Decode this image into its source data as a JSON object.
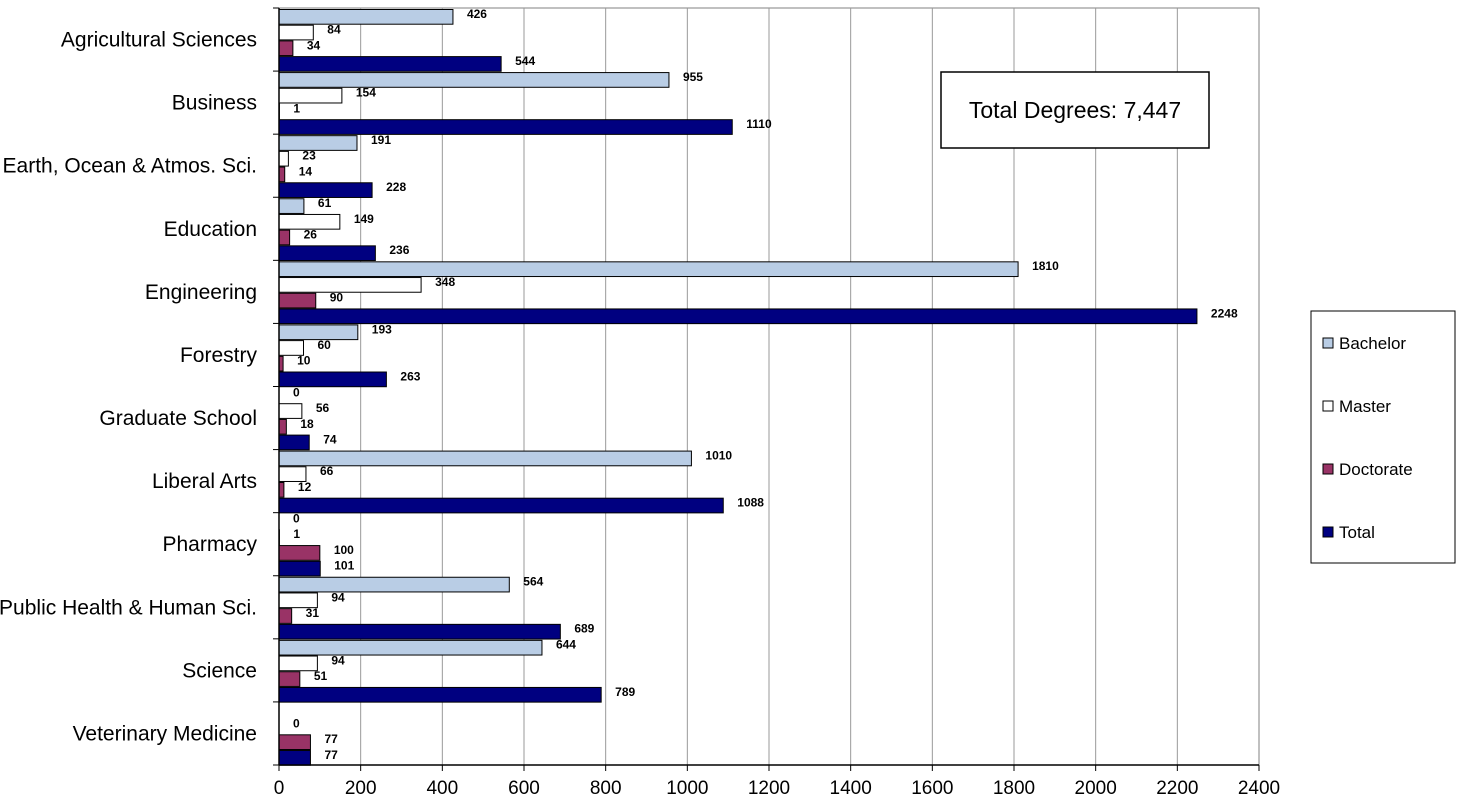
{
  "chart_data": {
    "type": "bar",
    "orientation": "horizontal",
    "categories": [
      "Agricultural Sciences",
      "Business",
      "Earth, Ocean & Atmos. Sci.",
      "Education",
      "Engineering",
      "Forestry",
      "Graduate School",
      "Liberal Arts",
      "Pharmacy",
      "Public Health & Human Sci.",
      "Science",
      "Veterinary Medicine"
    ],
    "series": [
      {
        "name": "Bachelor",
        "color": "#b9cde5",
        "values": [
          426,
          955,
          191,
          61,
          1810,
          193,
          0,
          1010,
          0,
          564,
          644,
          null
        ]
      },
      {
        "name": "Master",
        "color": "#ffffff",
        "values": [
          84,
          154,
          23,
          149,
          348,
          60,
          56,
          66,
          1,
          94,
          94,
          0
        ]
      },
      {
        "name": "Doctorate",
        "color": "#993366",
        "values": [
          34,
          1,
          14,
          26,
          90,
          10,
          18,
          12,
          100,
          31,
          51,
          77
        ]
      },
      {
        "name": "Total",
        "color": "#000080",
        "values": [
          544,
          1110,
          228,
          236,
          2248,
          263,
          74,
          1088,
          101,
          689,
          789,
          77
        ]
      }
    ],
    "xlim": [
      0,
      2400
    ],
    "xticks": [
      "0",
      "200",
      "400",
      "600",
      "800",
      "1000",
      "1200",
      "1400",
      "1600",
      "1800",
      "2000",
      "2200",
      "2400"
    ],
    "grid": "vertical",
    "legend_position": "right",
    "annotation": "Total Degrees: 7,447",
    "title": "",
    "xlabel": "",
    "ylabel": ""
  }
}
